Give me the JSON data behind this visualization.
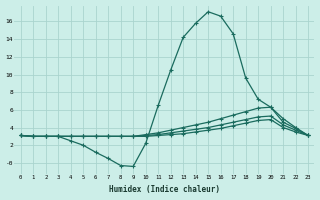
{
  "xlabel": "Humidex (Indice chaleur)",
  "bg_color": "#cceee8",
  "grid_color": "#aad4ce",
  "line_color": "#1a6b5e",
  "xlim": [
    -0.5,
    23.5
  ],
  "ylim": [
    -1.2,
    17.8
  ],
  "xticks": [
    0,
    1,
    2,
    3,
    4,
    5,
    6,
    7,
    8,
    9,
    10,
    11,
    12,
    13,
    14,
    15,
    16,
    17,
    18,
    19,
    20,
    21,
    22,
    23
  ],
  "ytick_vals": [
    0,
    2,
    4,
    6,
    8,
    10,
    12,
    14,
    16
  ],
  "ytick_labels": [
    "-0",
    "2",
    "4",
    "6",
    "8",
    "10",
    "12",
    "14",
    "16"
  ],
  "line1_x": [
    0,
    1,
    2,
    3,
    4,
    5,
    6,
    7,
    8,
    9,
    10,
    11,
    12,
    13,
    14,
    15,
    16,
    17,
    18,
    19,
    20,
    21,
    22,
    23
  ],
  "line1_y": [
    3.1,
    3.0,
    3.0,
    3.0,
    2.5,
    2.0,
    1.2,
    0.5,
    -0.3,
    -0.4,
    2.2,
    6.5,
    10.5,
    14.2,
    15.8,
    17.1,
    16.6,
    14.6,
    9.6,
    7.2,
    6.3,
    4.6,
    3.9,
    3.1
  ],
  "line2_x": [
    0,
    1,
    2,
    3,
    4,
    5,
    6,
    7,
    8,
    9,
    10,
    11,
    12,
    13,
    14,
    15,
    16,
    17,
    18,
    19,
    20,
    21,
    22,
    23
  ],
  "line2_y": [
    3.1,
    3.0,
    3.0,
    3.0,
    3.0,
    3.0,
    3.0,
    3.0,
    3.0,
    3.0,
    3.2,
    3.4,
    3.7,
    4.0,
    4.3,
    4.6,
    5.0,
    5.4,
    5.8,
    6.2,
    6.3,
    5.0,
    4.0,
    3.1
  ],
  "line3_x": [
    0,
    1,
    2,
    3,
    4,
    5,
    6,
    7,
    8,
    9,
    10,
    11,
    12,
    13,
    14,
    15,
    16,
    17,
    18,
    19,
    20,
    21,
    22,
    23
  ],
  "line3_y": [
    3.1,
    3.0,
    3.0,
    3.0,
    3.0,
    3.0,
    3.0,
    3.0,
    3.0,
    3.0,
    3.1,
    3.2,
    3.4,
    3.6,
    3.8,
    4.0,
    4.3,
    4.6,
    4.9,
    5.2,
    5.3,
    4.3,
    3.7,
    3.1
  ],
  "line4_x": [
    0,
    1,
    2,
    3,
    4,
    5,
    6,
    7,
    8,
    9,
    10,
    11,
    12,
    13,
    14,
    15,
    16,
    17,
    18,
    19,
    20,
    21,
    22,
    23
  ],
  "line4_y": [
    3.1,
    3.0,
    3.0,
    3.0,
    3.0,
    3.0,
    3.0,
    3.0,
    3.0,
    3.0,
    3.0,
    3.1,
    3.2,
    3.3,
    3.5,
    3.7,
    3.9,
    4.2,
    4.5,
    4.8,
    4.9,
    4.0,
    3.5,
    3.1
  ]
}
